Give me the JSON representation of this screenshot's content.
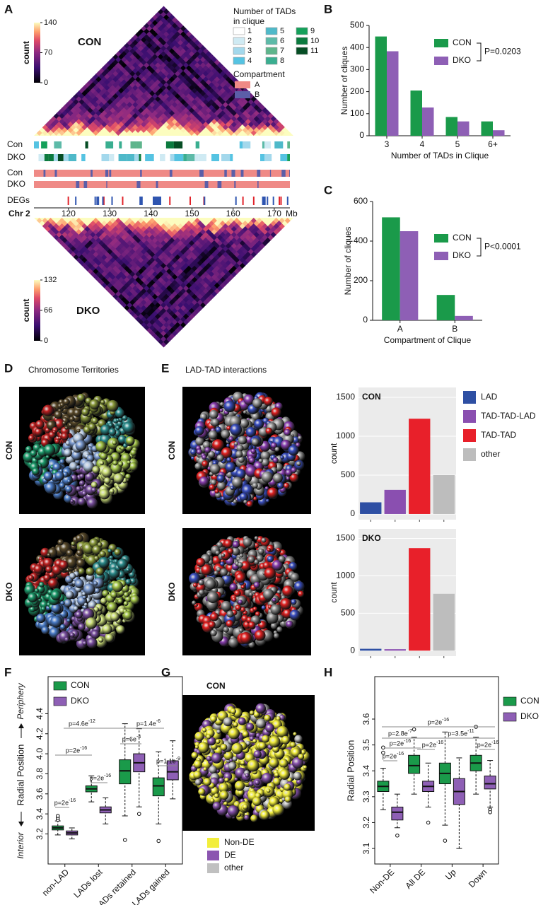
{
  "figure": {
    "panel_labels": [
      "A",
      "B",
      "C",
      "D",
      "E",
      "F",
      "G",
      "H"
    ],
    "panel_a": {
      "top_label": "CON",
      "bottom_label": "DKO",
      "top_colorbar": {
        "label": "count",
        "lim": [
          0,
          140
        ],
        "ticks": [
          0,
          70,
          140
        ]
      },
      "bottom_colorbar": {
        "label": "count",
        "lim": [
          0,
          132
        ],
        "ticks": [
          0,
          66,
          132
        ]
      },
      "clique_legend_title": [
        "Number of TADs",
        "in clique"
      ],
      "clique_legend": [
        {
          "name": "1",
          "color": "#ffffff"
        },
        {
          "name": "2",
          "color": "#cfeaf3"
        },
        {
          "name": "3",
          "color": "#a3d8ec"
        },
        {
          "name": "4",
          "color": "#55c3e2"
        },
        {
          "name": "5",
          "color": "#4fb9c9"
        },
        {
          "name": "6",
          "color": "#5dbaa8"
        },
        {
          "name": "7",
          "color": "#5eb58c"
        },
        {
          "name": "8",
          "color": "#3aae90"
        },
        {
          "name": "9",
          "color": "#15a05a"
        },
        {
          "name": "10",
          "color": "#0b7a3e"
        },
        {
          "name": "11",
          "color": "#064d24"
        }
      ],
      "compartment_legend_title": "Compartment",
      "compartment_legend": [
        {
          "name": "A",
          "color": "#ef8a86"
        },
        {
          "name": "B",
          "color": "#5b5ea8"
        }
      ],
      "track_labels": [
        "Con",
        "DKO",
        "Con",
        "DKO",
        "DEGs"
      ],
      "chromosome": "Chr 2",
      "xlim": [
        111.6,
        173.8
      ],
      "xticks": [
        120,
        130,
        140,
        150,
        160,
        170
      ],
      "x_unit": "Mb"
    },
    "panel_d": {
      "title": "Chromosome Territories",
      "rows": [
        "CON",
        "DKO"
      ]
    },
    "panel_e": {
      "title": "LAD-TAD interactions",
      "rows": [
        "CON",
        "DKO"
      ]
    },
    "panel_g": {
      "label": "CON",
      "legend": [
        {
          "name": "Non-DE",
          "color": "#f2ee3c"
        },
        {
          "name": "DE",
          "color": "#8b55b0"
        },
        {
          "name": "other",
          "color": "#c0c0c0"
        }
      ]
    }
  },
  "chart_data": [
    {
      "type": "bar",
      "ylabel": "Number of cliques",
      "xlabel": "Number of TADs in Clique",
      "categories": [
        "3",
        "4",
        "5",
        "6+"
      ],
      "series": [
        {
          "name": "CON",
          "color": "#1a9a4a",
          "values": [
            450,
            205,
            85,
            65
          ]
        },
        {
          "name": "DKO",
          "color": "#8e5fb5",
          "values": [
            383,
            128,
            65,
            25
          ]
        }
      ],
      "ylim": [
        0,
        500
      ],
      "yticks": [
        0,
        100,
        200,
        300,
        400,
        500
      ],
      "annotation": "P=0.0203"
    },
    {
      "type": "bar",
      "ylabel": "Number of cliques",
      "xlabel": "Compartment of Clique",
      "categories": [
        "A",
        "B"
      ],
      "series": [
        {
          "name": "CON",
          "color": "#1a9a4a",
          "values": [
            520,
            128
          ]
        },
        {
          "name": "DKO",
          "color": "#8e5fb5",
          "values": [
            450,
            22
          ]
        }
      ],
      "ylim": [
        0,
        600
      ],
      "yticks": [
        0,
        200,
        400,
        600
      ],
      "annotation": "P<0.0001"
    },
    {
      "type": "colorbar",
      "title": "CON",
      "ylabel": "count",
      "categories": [
        "LAD",
        "TAD-TAD-LAD",
        "TAD-TAD",
        "other"
      ],
      "colors": [
        "#2e4fa3",
        "#8a4fb0",
        "#e8202a",
        "#bdbdbd"
      ],
      "values": [
        150,
        310,
        1225,
        500
      ],
      "ylim": [
        -73,
        1627
      ],
      "yticks": [
        0,
        500,
        1000,
        1500
      ],
      "grid": true
    },
    {
      "type": "colorbar",
      "title": "DKO",
      "ylabel": "count",
      "colors": [
        "#2e4fa3",
        "#8a4fb0",
        "#e8202a",
        "#bdbdbd"
      ],
      "values": [
        25,
        20,
        1370,
        760
      ],
      "ylim": [
        -73,
        1627
      ],
      "yticks": [
        0,
        500,
        1000,
        1500
      ],
      "grid": true
    },
    {
      "type": "box",
      "ylabel_parts": [
        "Interior",
        "Radial Position",
        "Periphery"
      ],
      "categories": [
        "non-LAD",
        "LADs lost",
        "LADs retained",
        "LADs gained"
      ],
      "series": [
        {
          "name": "CON",
          "color": "#1a9a4a",
          "values": [
            {
              "min": 3.19,
              "q1": 3.24,
              "median": 3.26,
              "q3": 3.28,
              "max": 3.33,
              "outliers": [
                3.34,
                3.36,
                3.38
              ]
            },
            {
              "min": 3.52,
              "q1": 3.62,
              "median": 3.65,
              "q3": 3.68,
              "max": 3.78,
              "outliers": []
            },
            {
              "min": 3.38,
              "q1": 3.7,
              "median": 3.83,
              "q3": 3.94,
              "max": 4.3,
              "outliers": [
                3.14
              ]
            },
            {
              "min": 3.3,
              "q1": 3.58,
              "median": 3.68,
              "q3": 3.76,
              "max": 4.02,
              "outliers": [
                3.13
              ]
            }
          ]
        },
        {
          "name": "DKO",
          "color": "#8e5fb5",
          "values": [
            {
              "min": 3.15,
              "q1": 3.19,
              "median": 3.21,
              "q3": 3.23,
              "max": 3.26,
              "outliers": []
            },
            {
              "min": 3.3,
              "q1": 3.41,
              "median": 3.44,
              "q3": 3.47,
              "max": 3.56,
              "outliers": []
            },
            {
              "min": 3.47,
              "q1": 3.82,
              "median": 3.91,
              "q3": 4.0,
              "max": 4.25,
              "outliers": [
                3.4
              ]
            },
            {
              "min": 3.55,
              "q1": 3.74,
              "median": 3.82,
              "q3": 3.93,
              "max": 4.13,
              "outliers": []
            }
          ]
        }
      ],
      "ylim": [
        2.9,
        4.77
      ],
      "yticks": [
        3.2,
        3.4,
        3.6,
        3.8,
        {
          "value": 4,
          "label": "4.0"
        },
        4.2,
        4.4
      ],
      "annotations": [
        "p=2e-16",
        "p=2e-16",
        "p=2e-16",
        "p=4.6e-12",
        "p=1.4e-6",
        "p=6e-4",
        "p=1.1e-9"
      ]
    },
    {
      "type": "box",
      "ylabel": "Radial Position",
      "categories": [
        "Non-DE",
        "All DE",
        "Up",
        "Down"
      ],
      "series": [
        {
          "name": "CON",
          "color": "#1a9a4a",
          "values": [
            {
              "min": 3.25,
              "q1": 3.32,
              "median": 3.34,
              "q3": 3.36,
              "max": 3.41,
              "outliers": [
                3.47,
                3.49
              ]
            },
            {
              "min": 3.31,
              "q1": 3.39,
              "median": 3.42,
              "q3": 3.46,
              "max": 3.53,
              "outliers": [
                3.56
              ]
            },
            {
              "min": 3.19,
              "q1": 3.35,
              "median": 3.39,
              "q3": 3.43,
              "max": 3.55,
              "outliers": [
                3.13
              ]
            },
            {
              "min": 3.31,
              "q1": 3.4,
              "median": 3.43,
              "q3": 3.46,
              "max": 3.53,
              "outliers": [
                3.57
              ]
            }
          ]
        },
        {
          "name": "DKO",
          "color": "#8e5fb5",
          "values": [
            {
              "min": 3.18,
              "q1": 3.21,
              "median": 3.24,
              "q3": 3.26,
              "max": 3.31,
              "outliers": [
                3.15
              ]
            },
            {
              "min": 3.26,
              "q1": 3.32,
              "median": 3.34,
              "q3": 3.36,
              "max": 3.43,
              "outliers": [
                3.2
              ]
            },
            {
              "min": 3.1,
              "q1": 3.27,
              "median": 3.32,
              "q3": 3.37,
              "max": 3.45,
              "outliers": []
            },
            {
              "min": 3.26,
              "q1": 3.33,
              "median": 3.35,
              "q3": 3.38,
              "max": 3.44,
              "outliers": [
                3.25,
                3.24
              ]
            }
          ]
        }
      ],
      "ylim": [
        3.04,
        3.764
      ],
      "yticks": [
        3.1,
        3.2,
        3.3,
        3.4,
        3.5,
        3.6
      ],
      "annotations": [
        "p=2e-16",
        "p=2.8e-7",
        "p=2e-16",
        "p=2e-16",
        "p=3.5e-11",
        "p=2e-16",
        "p=2e-16"
      ]
    }
  ]
}
